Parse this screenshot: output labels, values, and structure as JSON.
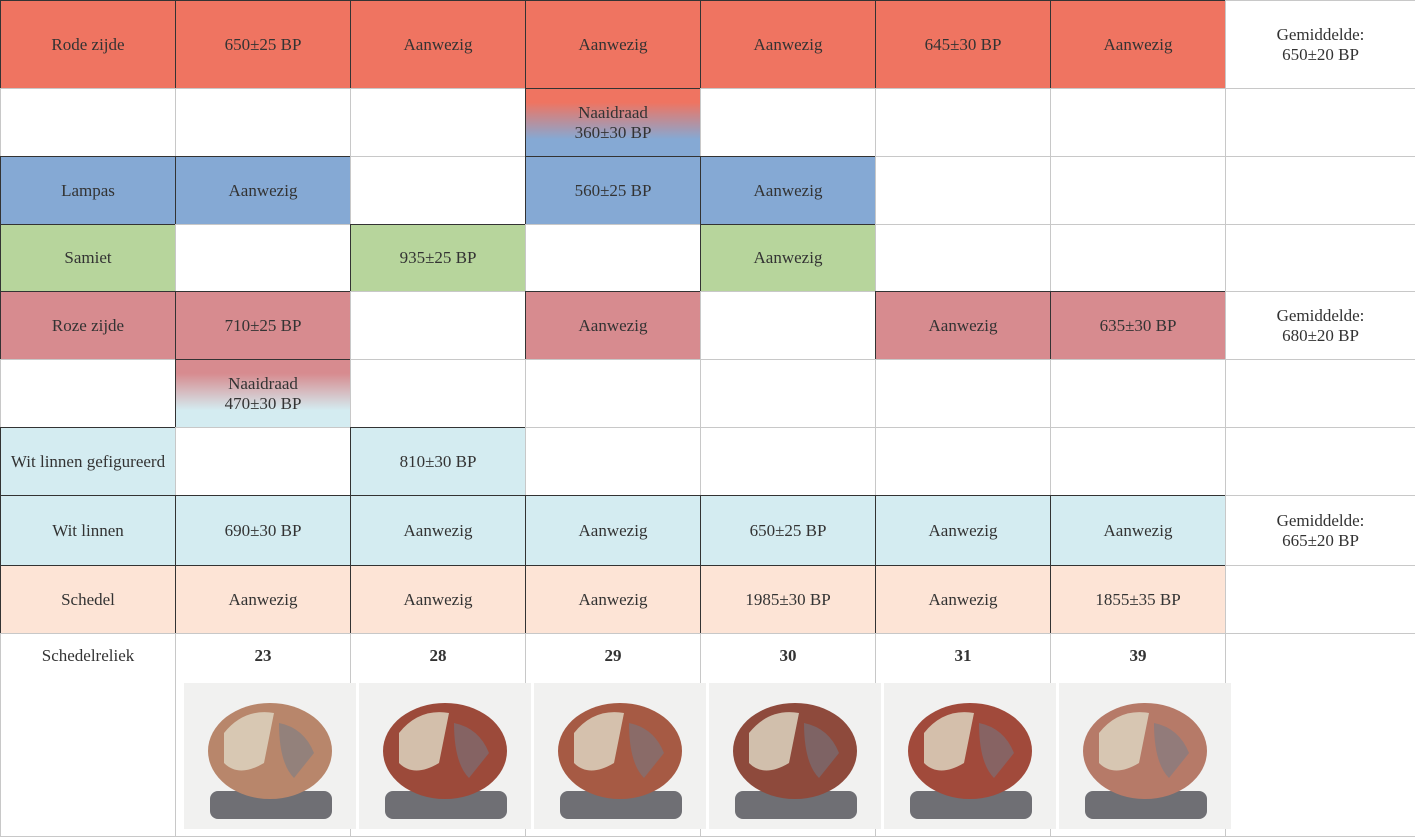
{
  "table": {
    "rows": [
      {
        "label": "Rode zijde",
        "color": "#ef7461",
        "cells": [
          "650±25 BP",
          "Aanwezig",
          "Aanwezig",
          "Aanwezig",
          "645±30 BP",
          "Aanwezig"
        ],
        "average": [
          "Gemiddelde:",
          "650±20 BP"
        ]
      },
      {
        "label": null,
        "color": null,
        "cells": [
          null,
          null,
          {
            "lines": [
              "Naaidraad",
              "360±30 BP"
            ],
            "colors": [
              "#ef7461",
              "#85a9d4"
            ]
          },
          null,
          null,
          null
        ],
        "average": null
      },
      {
        "label": "Lampas",
        "color": "#85a9d4",
        "cells": [
          "Aanwezig",
          null,
          "560±25 BP",
          "Aanwezig",
          null,
          null
        ],
        "average": null
      },
      {
        "label": "Samiet",
        "color": "#b7d59c",
        "cells": [
          null,
          "935±25 BP",
          null,
          "Aanwezig",
          null,
          null
        ],
        "average": null
      },
      {
        "label": "Roze zijde",
        "color": "#d78b8f",
        "cells": [
          "710±25 BP",
          null,
          "Aanwezig",
          null,
          "Aanwezig",
          "635±30 BP"
        ],
        "average": [
          "Gemiddelde:",
          "680±20 BP"
        ]
      },
      {
        "label": null,
        "color": null,
        "cells": [
          {
            "lines": [
              "Naaidraad",
              "470±30 BP"
            ],
            "colors": [
              "#d78b8f",
              "#d4ecf1"
            ]
          },
          null,
          null,
          null,
          null,
          null
        ],
        "average": null
      },
      {
        "label": "Wit linnen gefigureerd",
        "color": "#d4ecf1",
        "cells": [
          null,
          "810±30 BP",
          null,
          null,
          null,
          null
        ],
        "average": null
      },
      {
        "label": "Wit linnen",
        "color": "#d4ecf1",
        "cells": [
          "690±30 BP",
          "Aanwezig",
          "Aanwezig",
          "650±25 BP",
          "Aanwezig",
          "Aanwezig"
        ],
        "average": [
          "Gemiddelde:",
          "665±20 BP"
        ]
      },
      {
        "label": "Schedel",
        "color": "#fde4d6",
        "cells": [
          "Aanwezig",
          "Aanwezig",
          "Aanwezig",
          "1985±30 BP",
          "Aanwezig",
          "1855±35 BP"
        ],
        "average": null
      }
    ],
    "relics": {
      "label": "Schedelreliek",
      "numbers": [
        "23",
        "28",
        "29",
        "30",
        "31",
        "39"
      ]
    }
  }
}
